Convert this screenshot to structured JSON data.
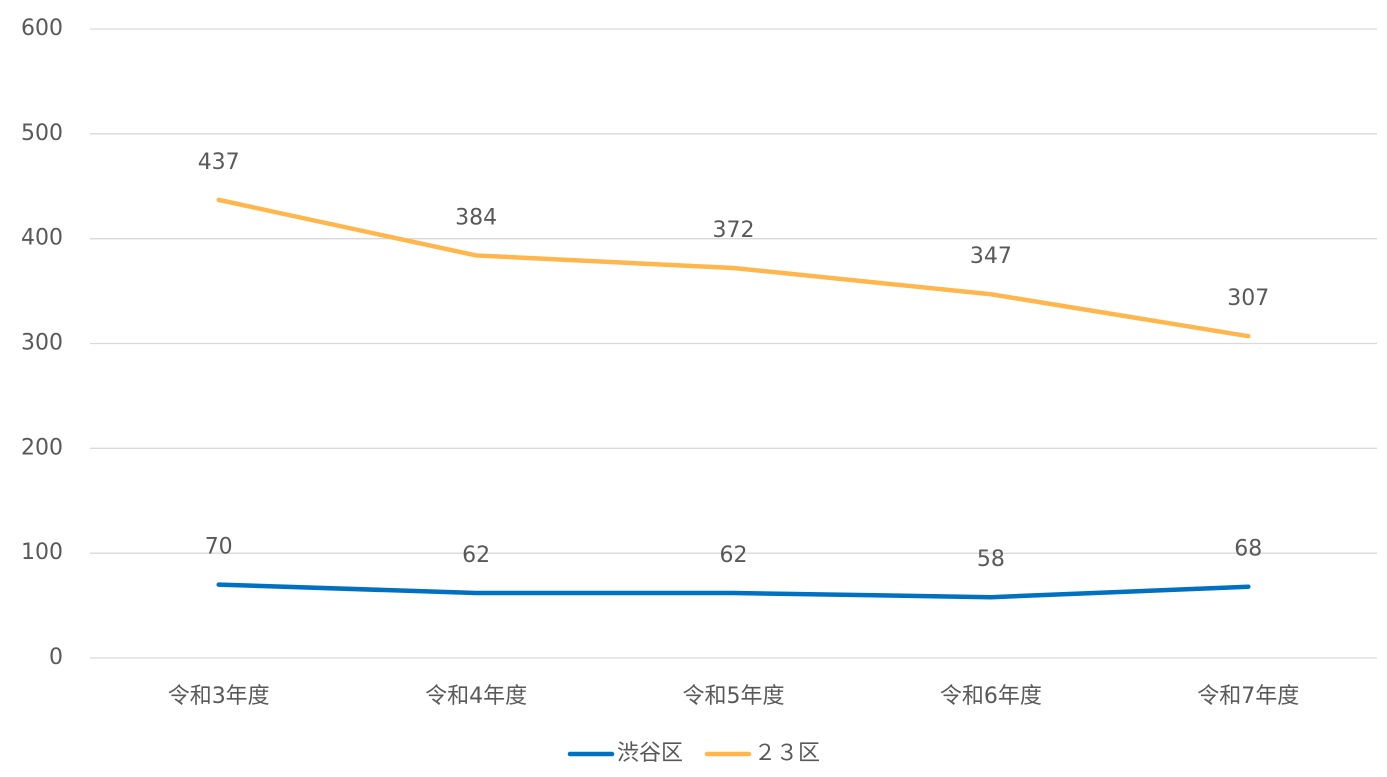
{
  "chart_data": {
    "type": "line",
    "categories": [
      "令和3年度",
      "令和4年度",
      "令和5年度",
      "令和6年度",
      "令和7年度"
    ],
    "series": [
      {
        "name": "渋谷区",
        "color": "#0070c0",
        "values": [
          70,
          62,
          62,
          58,
          68
        ]
      },
      {
        "name": "２３区",
        "color": "#ffb74d",
        "values": [
          437,
          384,
          372,
          347,
          307
        ]
      }
    ],
    "ylim": [
      0,
      600
    ],
    "yticks": [
      0,
      100,
      200,
      300,
      400,
      500,
      600
    ],
    "grid": true,
    "legend": "bottom"
  }
}
